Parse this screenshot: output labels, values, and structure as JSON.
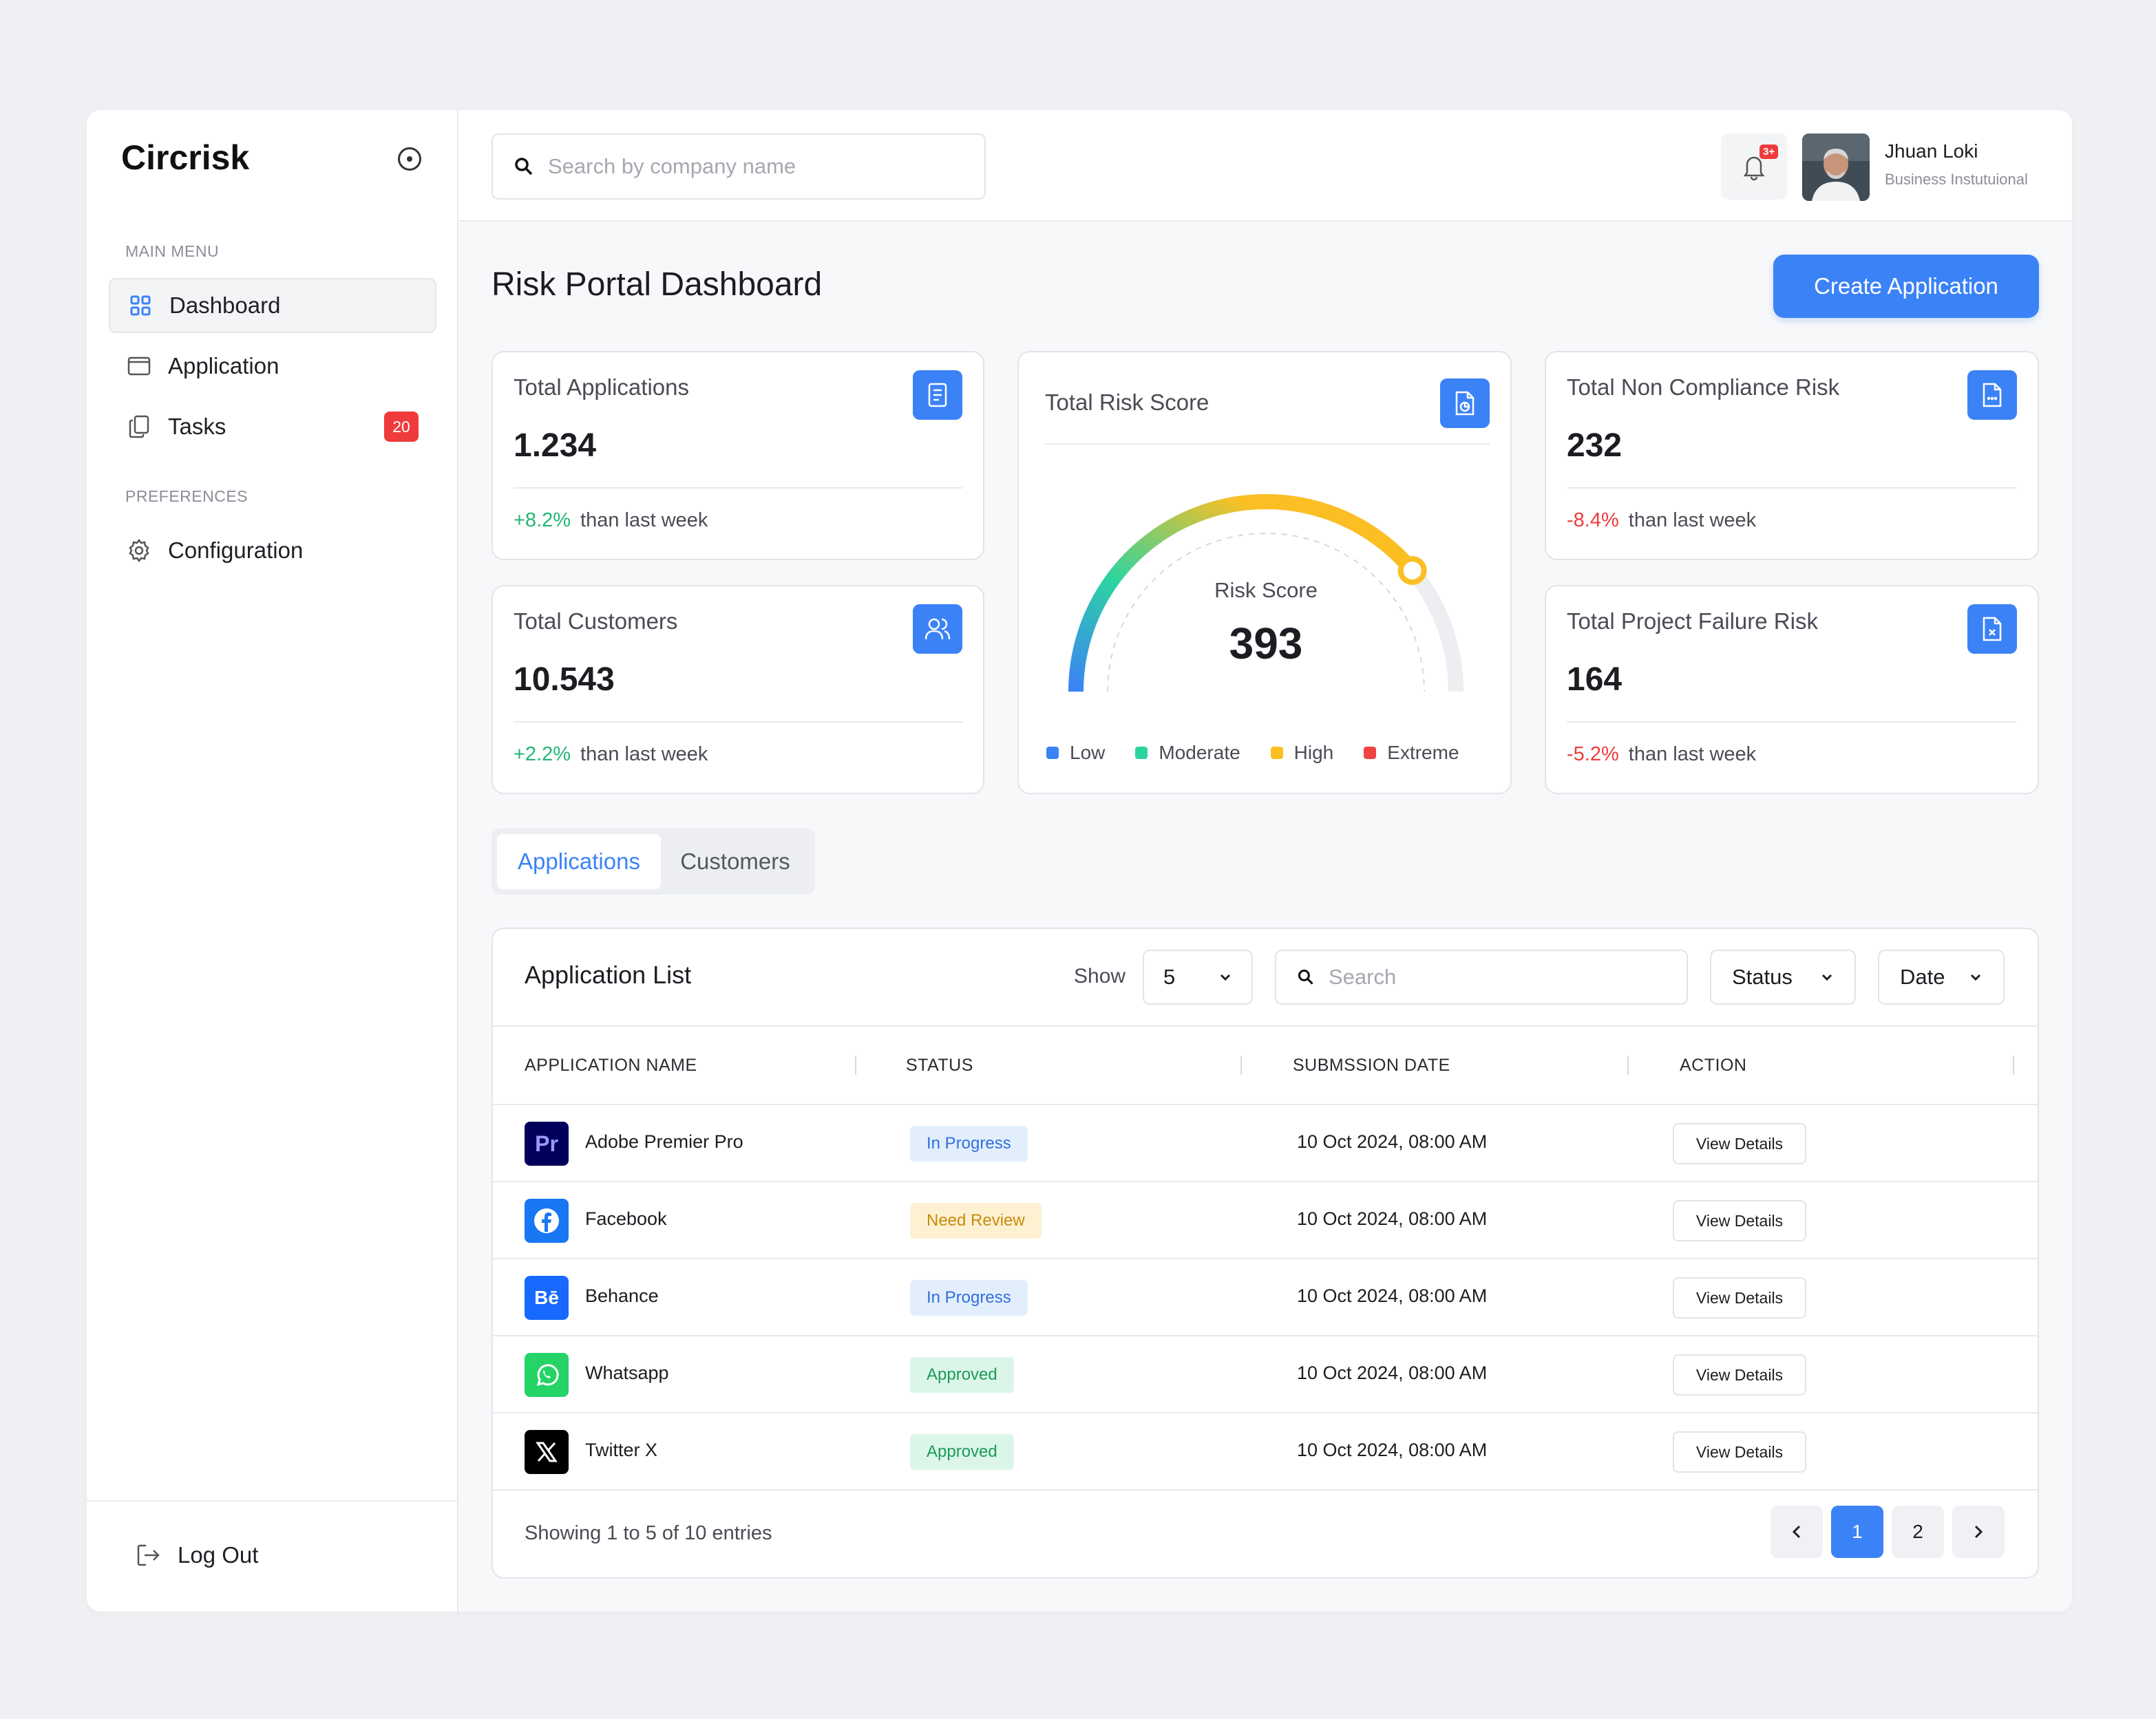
{
  "app": {
    "brand": "Circrisk"
  },
  "sidebar": {
    "main_menu_label": "MAIN MENU",
    "preferences_label": "PREFERENCES",
    "items": [
      {
        "label": "Dashboard",
        "icon": "grid-icon",
        "active": true
      },
      {
        "label": "Application",
        "icon": "window-icon"
      },
      {
        "label": "Tasks",
        "icon": "copy-icon",
        "badge": "20"
      },
      {
        "label": "Configuration",
        "icon": "gear-icon"
      }
    ],
    "logout_label": "Log Out"
  },
  "topbar": {
    "search_placeholder": "Search by company name",
    "notification_badge": "3+",
    "user": {
      "name": "Jhuan Loki",
      "role": "Business Instutuional"
    }
  },
  "page": {
    "title": "Risk Portal Dashboard",
    "create_label": "Create Application"
  },
  "stats": {
    "total_applications": {
      "title": "Total Applications",
      "value": "1.234",
      "change": "+8.2%",
      "suffix": "than last week"
    },
    "total_customers": {
      "title": "Total Customers",
      "value": "10.543",
      "change": "+2.2%",
      "suffix": "than last week"
    },
    "non_compliance": {
      "title": "Total Non Compliance Risk",
      "value": "232",
      "change": "-8.4%",
      "suffix": "than last week"
    },
    "project_failure": {
      "title": "Total Project Failure Risk",
      "value": "164",
      "change": "-5.2%",
      "suffix": "than last week"
    }
  },
  "risk": {
    "title": "Total Risk Score",
    "label": "Risk Score",
    "value": "393",
    "gauge_fraction": 0.78,
    "legend": [
      {
        "label": "Low",
        "color": "#3b82f6"
      },
      {
        "label": "Moderate",
        "color": "#2dd4a0"
      },
      {
        "label": "High",
        "color": "#fbbf24"
      },
      {
        "label": "Extreme",
        "color": "#ef4444"
      }
    ]
  },
  "tabs": [
    {
      "label": "Applications",
      "active": true
    },
    {
      "label": "Customers"
    }
  ],
  "table": {
    "title": "Application List",
    "show_label": "Show",
    "show_value": "5",
    "search_placeholder": "Search",
    "status_filter": "Status",
    "date_filter": "Date",
    "columns": [
      "APPLICATION NAME",
      "STATUS",
      "SUBMSSION DATE",
      "ACTION"
    ],
    "rows": [
      {
        "name": "Adobe Premier Pro",
        "logo_text": "Pr",
        "logo_color": "#00005b",
        "status": "In Progress",
        "date": "10 Oct 2024, 08:00 AM",
        "action": "View Details"
      },
      {
        "name": "Facebook",
        "logo_text": "",
        "logo_color": "#1877f2",
        "status": "Need Review",
        "date": "10 Oct 2024, 08:00 AM",
        "action": "View Details"
      },
      {
        "name": "Behance",
        "logo_text": "Bē",
        "logo_color": "#1769ff",
        "status": "In Progress",
        "date": "10 Oct 2024, 08:00 AM",
        "action": "View Details"
      },
      {
        "name": "Whatsapp",
        "logo_text": "",
        "logo_color": "#25d366",
        "status": "Approved",
        "date": "10 Oct 2024, 08:00 AM",
        "action": "View Details"
      },
      {
        "name": "Twitter X",
        "logo_text": "",
        "logo_color": "#000000",
        "status": "Approved",
        "date": "10 Oct 2024, 08:00 AM",
        "action": "View Details"
      }
    ],
    "entries": "Showing 1 to 5 of 10 entries",
    "pages": [
      "1",
      "2"
    ]
  }
}
